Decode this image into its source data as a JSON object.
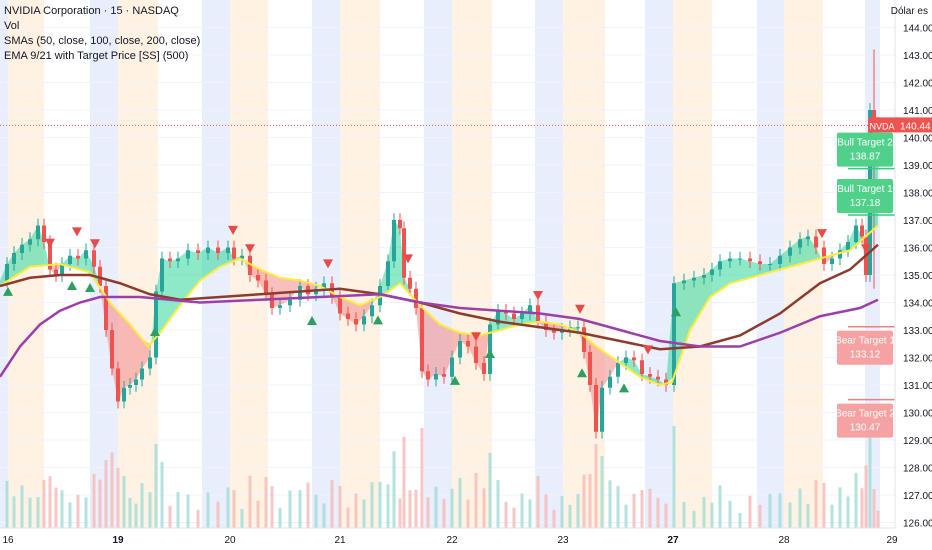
{
  "header": {
    "title": "NVIDIA Corporation · 15 · NASDAQ",
    "indicators": [
      "Vol",
      "SMAs (50, close, 100, close, 200, close)",
      "EMA 9/21 with Target Price [SS] (500)"
    ],
    "currency": "Dólar es"
  },
  "colors": {
    "up": "#26a69a",
    "down": "#ef5350",
    "sma50": "#ffeb3b",
    "sma100": "#8d3b2f",
    "sma200": "#9c3fa8",
    "bull_fill": "#2fd79a",
    "bear_fill": "#f28b8b",
    "bull_label": "#4fd18a",
    "bear_label": "#f6a2a2",
    "session_blue": "#e8eefc",
    "session_orange": "#fff2e2"
  },
  "chart_data": {
    "type": "candlestick",
    "symbol": "NVDA",
    "interval": "15",
    "x_labels": [
      "16",
      "19",
      "20",
      "21",
      "22",
      "23",
      "27",
      "28",
      "29"
    ],
    "ylim": [
      125.8,
      145
    ],
    "y_ticks": [
      126,
      127,
      128,
      129,
      130,
      131,
      132,
      133,
      134,
      135,
      136,
      137,
      138,
      139,
      140,
      141,
      142,
      143,
      144
    ],
    "y_tick_labels": [
      "126.00",
      "127.00",
      "128.00",
      "129.00",
      "130.00",
      "131.00",
      "132.00",
      "133.00",
      "134.00",
      "135.00",
      "136.00",
      "137.00",
      "138.00",
      "139.00",
      "140.00",
      "141.00",
      "142.00",
      "143.00",
      "144.00"
    ],
    "last_price": 140.44,
    "last_price_label": "140.44",
    "last_price_tag": "NVDA",
    "price_path": [
      [
        0,
        134.8
      ],
      [
        7,
        135.4
      ],
      [
        14,
        135.8
      ],
      [
        22,
        136.1
      ],
      [
        30,
        136.3
      ],
      [
        38,
        136.8
      ],
      [
        44,
        136.2
      ],
      [
        50,
        135.2
      ],
      [
        56,
        135.0
      ],
      [
        62,
        135.4
      ],
      [
        70,
        135.7
      ],
      [
        78,
        135.6
      ],
      [
        86,
        135.9
      ],
      [
        94,
        135.3
      ],
      [
        100,
        134.6
      ],
      [
        106,
        133.0
      ],
      [
        112,
        131.6
      ],
      [
        118,
        130.4
      ],
      [
        124,
        130.9
      ],
      [
        130,
        131.0
      ],
      [
        136,
        131.2
      ],
      [
        142,
        131.6
      ],
      [
        150,
        132.0
      ],
      [
        156,
        134.4
      ],
      [
        162,
        135.6
      ],
      [
        170,
        135.5
      ],
      [
        178,
        135.6
      ],
      [
        188,
        135.9
      ],
      [
        198,
        135.8
      ],
      [
        208,
        136.0
      ],
      [
        218,
        135.8
      ],
      [
        228,
        136.0
      ],
      [
        234,
        135.6
      ],
      [
        242,
        135.7
      ],
      [
        250,
        135.0
      ],
      [
        258,
        134.8
      ],
      [
        266,
        134.3
      ],
      [
        272,
        133.8
      ],
      [
        280,
        133.9
      ],
      [
        290,
        134.1
      ],
      [
        300,
        134.6
      ],
      [
        308,
        134.3
      ],
      [
        316,
        134.5
      ],
      [
        324,
        134.7
      ],
      [
        332,
        134.2
      ],
      [
        340,
        133.6
      ],
      [
        348,
        133.4
      ],
      [
        356,
        133.2
      ],
      [
        364,
        133.5
      ],
      [
        372,
        133.9
      ],
      [
        380,
        134.6
      ],
      [
        388,
        135.5
      ],
      [
        394,
        137.0
      ],
      [
        400,
        136.7
      ],
      [
        404,
        134.9
      ],
      [
        410,
        134.5
      ],
      [
        416,
        133.8
      ],
      [
        422,
        131.5
      ],
      [
        428,
        131.2
      ],
      [
        436,
        131.4
      ],
      [
        444,
        131.3
      ],
      [
        452,
        132.0
      ],
      [
        460,
        132.6
      ],
      [
        468,
        132.4
      ],
      [
        476,
        131.8
      ],
      [
        484,
        131.4
      ],
      [
        490,
        133.2
      ],
      [
        498,
        133.7
      ],
      [
        506,
        133.6
      ],
      [
        514,
        133.4
      ],
      [
        522,
        133.6
      ],
      [
        530,
        133.9
      ],
      [
        538,
        133.3
      ],
      [
        546,
        133.0
      ],
      [
        554,
        132.9
      ],
      [
        562,
        133.0
      ],
      [
        570,
        133.1
      ],
      [
        578,
        133.1
      ],
      [
        584,
        132.2
      ],
      [
        590,
        131.0
      ],
      [
        596,
        129.3
      ],
      [
        602,
        130.9
      ],
      [
        610,
        131.3
      ],
      [
        618,
        131.8
      ],
      [
        626,
        132.0
      ],
      [
        634,
        131.9
      ],
      [
        642,
        131.4
      ],
      [
        650,
        131.3
      ],
      [
        658,
        131.2
      ],
      [
        666,
        131.0
      ],
      [
        674,
        134.7
      ],
      [
        684,
        134.8
      ],
      [
        694,
        134.9
      ],
      [
        704,
        135.0
      ],
      [
        712,
        135.2
      ],
      [
        720,
        135.5
      ],
      [
        730,
        135.6
      ],
      [
        740,
        135.6
      ],
      [
        750,
        135.5
      ],
      [
        760,
        135.4
      ],
      [
        770,
        135.4
      ],
      [
        780,
        135.7
      ],
      [
        790,
        136.0
      ],
      [
        800,
        136.3
      ],
      [
        808,
        136.4
      ],
      [
        816,
        136.0
      ],
      [
        824,
        135.4
      ],
      [
        832,
        135.6
      ],
      [
        840,
        135.9
      ],
      [
        848,
        136.2
      ],
      [
        856,
        136.8
      ],
      [
        862,
        136.4
      ],
      [
        866,
        135.0
      ],
      [
        870,
        141.0
      ],
      [
        874,
        140.5
      ],
      [
        878,
        140.4
      ]
    ],
    "series": [
      {
        "name": "SMA 50",
        "color_key": "sma50",
        "points": [
          [
            0,
            134.6
          ],
          [
            30,
            135.3
          ],
          [
            60,
            135.4
          ],
          [
            90,
            135.1
          ],
          [
            110,
            134.0
          ],
          [
            130,
            133.2
          ],
          [
            148,
            132.4
          ],
          [
            160,
            132.9
          ],
          [
            180,
            133.9
          ],
          [
            200,
            134.8
          ],
          [
            220,
            135.3
          ],
          [
            240,
            135.6
          ],
          [
            260,
            135.2
          ],
          [
            280,
            134.9
          ],
          [
            300,
            134.8
          ],
          [
            320,
            134.6
          ],
          [
            340,
            134.2
          ],
          [
            360,
            133.9
          ],
          [
            380,
            134.2
          ],
          [
            400,
            134.7
          ],
          [
            420,
            133.9
          ],
          [
            440,
            133.2
          ],
          [
            460,
            132.9
          ],
          [
            480,
            132.8
          ],
          [
            500,
            133.0
          ],
          [
            520,
            133.2
          ],
          [
            540,
            133.3
          ],
          [
            560,
            133.2
          ],
          [
            580,
            132.9
          ],
          [
            600,
            132.3
          ],
          [
            620,
            131.8
          ],
          [
            640,
            131.3
          ],
          [
            660,
            131.0
          ],
          [
            672,
            131.1
          ],
          [
            690,
            133.0
          ],
          [
            710,
            134.2
          ],
          [
            730,
            134.7
          ],
          [
            760,
            135.0
          ],
          [
            790,
            135.3
          ],
          [
            820,
            135.6
          ],
          [
            850,
            135.9
          ],
          [
            878,
            136.8
          ]
        ]
      },
      {
        "name": "SMA 100",
        "color_key": "sma100",
        "points": [
          [
            0,
            134.6
          ],
          [
            30,
            134.9
          ],
          [
            60,
            135.0
          ],
          [
            90,
            135.0
          ],
          [
            120,
            134.7
          ],
          [
            150,
            134.3
          ],
          [
            180,
            134.1
          ],
          [
            220,
            134.2
          ],
          [
            260,
            134.3
          ],
          [
            300,
            134.4
          ],
          [
            340,
            134.5
          ],
          [
            380,
            134.3
          ],
          [
            420,
            134.0
          ],
          [
            460,
            133.6
          ],
          [
            500,
            133.3
          ],
          [
            540,
            133.1
          ],
          [
            580,
            132.9
          ],
          [
            620,
            132.6
          ],
          [
            660,
            132.3
          ],
          [
            700,
            132.4
          ],
          [
            740,
            132.8
          ],
          [
            780,
            133.6
          ],
          [
            820,
            134.7
          ],
          [
            850,
            135.2
          ],
          [
            878,
            136.1
          ]
        ]
      },
      {
        "name": "SMA 200",
        "color_key": "sma200",
        "points": [
          [
            0,
            131.3
          ],
          [
            20,
            132.4
          ],
          [
            40,
            133.2
          ],
          [
            60,
            133.7
          ],
          [
            80,
            134.0
          ],
          [
            100,
            134.2
          ],
          [
            140,
            134.2
          ],
          [
            200,
            134.0
          ],
          [
            260,
            134.1
          ],
          [
            320,
            134.2
          ],
          [
            380,
            134.3
          ],
          [
            420,
            134.0
          ],
          [
            460,
            133.8
          ],
          [
            500,
            133.7
          ],
          [
            540,
            133.6
          ],
          [
            580,
            133.4
          ],
          [
            620,
            133.0
          ],
          [
            660,
            132.6
          ],
          [
            700,
            132.4
          ],
          [
            740,
            132.4
          ],
          [
            780,
            132.9
          ],
          [
            820,
            133.5
          ],
          [
            860,
            133.8
          ],
          [
            878,
            134.1
          ]
        ]
      }
    ],
    "target_lines": [
      {
        "label": "Bull Target 2",
        "value": 138.87,
        "value_label": "138.87",
        "kind": "bull"
      },
      {
        "label": "Bull Target 1",
        "value": 137.18,
        "value_label": "137.18",
        "kind": "bull"
      },
      {
        "label": "Bear Target 1",
        "value": 133.12,
        "value_label": "133.12",
        "kind": "bear"
      },
      {
        "label": "Bear Target 2",
        "value": 130.47,
        "value_label": "130.47",
        "kind": "bear"
      }
    ],
    "signals": {
      "buy_x": [
        8,
        72,
        90,
        155,
        312,
        378,
        455,
        490,
        582,
        624,
        676
      ],
      "sell_x": [
        50,
        77,
        95,
        233,
        250,
        328,
        408,
        476,
        538,
        580,
        648,
        822,
        866
      ]
    },
    "session_x_labels": {
      "16": 8,
      "19": 118,
      "20": 230,
      "21": 340,
      "22": 452,
      "23": 563,
      "27": 673,
      "28": 784,
      "29": 892
    }
  }
}
